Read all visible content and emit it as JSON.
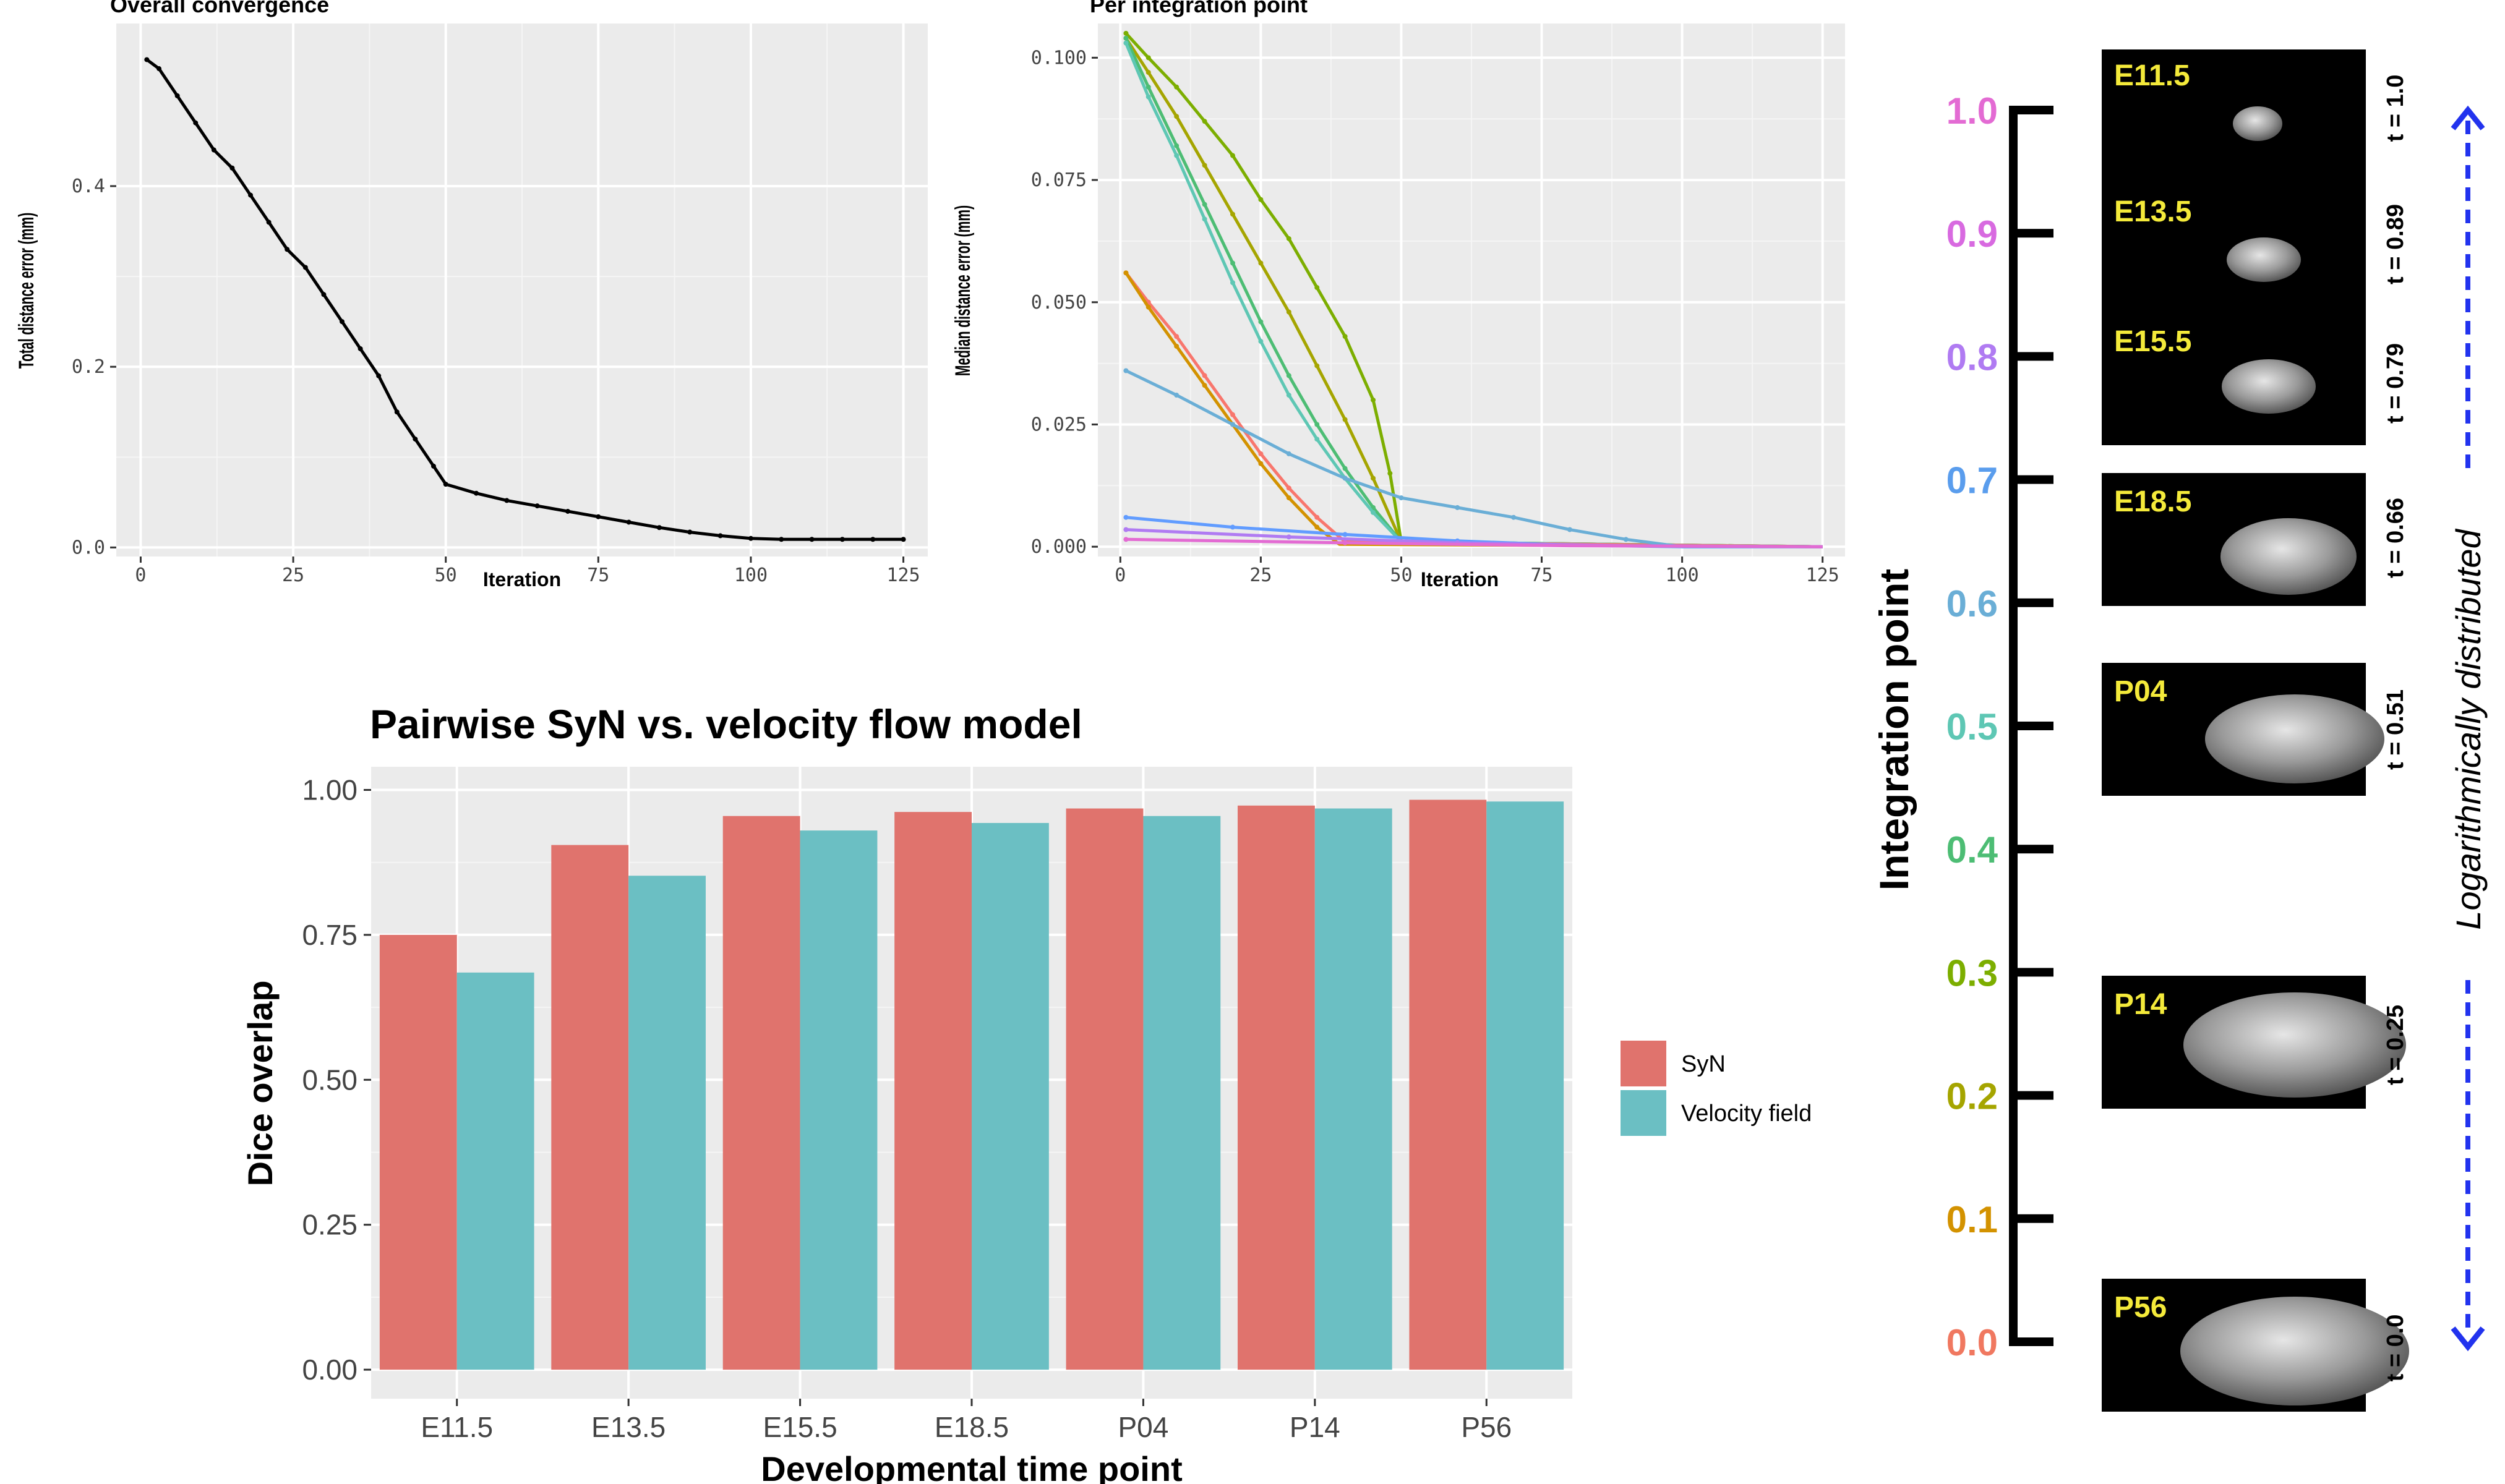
{
  "colors": {
    "panel_bg": "#ebebeb",
    "grid_major": "#ffffff",
    "syn": "#e0736d",
    "velocity": "#6bbfc3",
    "arrow": "#2233ee",
    "image_label": "#f4ea3a"
  },
  "chart_data": [
    {
      "type": "line",
      "title": "Overall convergence",
      "xlabel": "Iteration",
      "ylabel": "Total distance error (mm)",
      "xlim": [
        -4,
        129
      ],
      "ylim": [
        -0.01,
        0.58
      ],
      "x_ticks": [
        "0",
        "25",
        "50",
        "75",
        "100",
        "125"
      ],
      "y_ticks": [
        "0.0",
        "0.2",
        "0.4"
      ],
      "grid": true,
      "series": [
        {
          "color": "#000000",
          "points": [
            [
              1,
              0.54
            ],
            [
              3,
              0.53
            ],
            [
              6,
              0.5
            ],
            [
              9,
              0.47
            ],
            [
              12,
              0.44
            ],
            [
              15,
              0.42
            ],
            [
              18,
              0.39
            ],
            [
              21,
              0.36
            ],
            [
              24,
              0.33
            ],
            [
              27,
              0.31
            ],
            [
              30,
              0.28
            ],
            [
              33,
              0.25
            ],
            [
              36,
              0.22
            ],
            [
              39,
              0.19
            ],
            [
              42,
              0.15
            ],
            [
              45,
              0.12
            ],
            [
              48,
              0.09
            ],
            [
              50,
              0.07
            ],
            [
              55,
              0.06
            ],
            [
              60,
              0.052
            ],
            [
              65,
              0.046
            ],
            [
              70,
              0.04
            ],
            [
              75,
              0.034
            ],
            [
              80,
              0.028
            ],
            [
              85,
              0.022
            ],
            [
              90,
              0.017
            ],
            [
              95,
              0.013
            ],
            [
              100,
              0.01
            ],
            [
              105,
              0.009
            ],
            [
              110,
              0.009
            ],
            [
              115,
              0.009
            ],
            [
              120,
              0.009
            ],
            [
              125,
              0.009
            ]
          ]
        }
      ]
    },
    {
      "type": "line",
      "title": "Per integration point",
      "xlabel": "Iteration",
      "ylabel": "Median distance error (mm)",
      "xlim": [
        -4,
        129
      ],
      "ylim": [
        -0.002,
        0.107
      ],
      "x_ticks": [
        "0",
        "25",
        "50",
        "75",
        "100",
        "125"
      ],
      "y_ticks": [
        "0.000",
        "0.025",
        "0.050",
        "0.075",
        "0.100"
      ],
      "grid": true,
      "series": [
        {
          "color": "#7cae00",
          "points": [
            [
              1,
              0.105
            ],
            [
              5,
              0.1
            ],
            [
              10,
              0.094
            ],
            [
              15,
              0.087
            ],
            [
              20,
              0.08
            ],
            [
              25,
              0.071
            ],
            [
              30,
              0.063
            ],
            [
              35,
              0.053
            ],
            [
              40,
              0.043
            ],
            [
              45,
              0.03
            ],
            [
              48,
              0.015
            ],
            [
              50,
              0.001
            ],
            [
              125,
              0
            ]
          ]
        },
        {
          "color": "#a5a500",
          "points": [
            [
              1,
              0.104
            ],
            [
              5,
              0.097
            ],
            [
              10,
              0.088
            ],
            [
              15,
              0.078
            ],
            [
              20,
              0.068
            ],
            [
              25,
              0.058
            ],
            [
              30,
              0.048
            ],
            [
              35,
              0.037
            ],
            [
              40,
              0.026
            ],
            [
              45,
              0.014
            ],
            [
              50,
              0.001
            ],
            [
              125,
              0
            ]
          ]
        },
        {
          "color": "#4dbd74",
          "points": [
            [
              1,
              0.104
            ],
            [
              5,
              0.094
            ],
            [
              10,
              0.082
            ],
            [
              15,
              0.07
            ],
            [
              20,
              0.058
            ],
            [
              25,
              0.046
            ],
            [
              30,
              0.035
            ],
            [
              35,
              0.025
            ],
            [
              40,
              0.016
            ],
            [
              45,
              0.008
            ],
            [
              50,
              0.001
            ],
            [
              125,
              0
            ]
          ]
        },
        {
          "color": "#5ec7b4",
          "points": [
            [
              1,
              0.103
            ],
            [
              5,
              0.092
            ],
            [
              10,
              0.08
            ],
            [
              15,
              0.067
            ],
            [
              20,
              0.054
            ],
            [
              25,
              0.042
            ],
            [
              30,
              0.031
            ],
            [
              35,
              0.022
            ],
            [
              40,
              0.014
            ],
            [
              45,
              0.007
            ],
            [
              50,
              0.001
            ],
            [
              125,
              0
            ]
          ]
        },
        {
          "color": "#f8766d",
          "points": [
            [
              1,
              0.056
            ],
            [
              5,
              0.05
            ],
            [
              10,
              0.043
            ],
            [
              15,
              0.035
            ],
            [
              20,
              0.027
            ],
            [
              25,
              0.019
            ],
            [
              30,
              0.012
            ],
            [
              35,
              0.006
            ],
            [
              40,
              0.001
            ],
            [
              125,
              0
            ]
          ]
        },
        {
          "color": "#d39200",
          "points": [
            [
              1,
              0.056
            ],
            [
              5,
              0.049
            ],
            [
              10,
              0.041
            ],
            [
              15,
              0.033
            ],
            [
              20,
              0.025
            ],
            [
              25,
              0.017
            ],
            [
              30,
              0.01
            ],
            [
              35,
              0.004
            ],
            [
              39,
              0.0005
            ],
            [
              125,
              0
            ]
          ]
        },
        {
          "color": "#6aaed6",
          "points": [
            [
              1,
              0.036
            ],
            [
              10,
              0.031
            ],
            [
              20,
              0.025
            ],
            [
              30,
              0.019
            ],
            [
              40,
              0.014
            ],
            [
              50,
              0.01
            ],
            [
              60,
              0.008
            ],
            [
              70,
              0.006
            ],
            [
              80,
              0.0035
            ],
            [
              90,
              0.0015
            ],
            [
              100,
              0
            ],
            [
              125,
              0
            ]
          ]
        },
        {
          "color": "#619cff",
          "points": [
            [
              1,
              0.006
            ],
            [
              20,
              0.004
            ],
            [
              40,
              0.0025
            ],
            [
              60,
              0.0012
            ],
            [
              80,
              0.0003
            ],
            [
              100,
              0
            ],
            [
              125,
              0
            ]
          ]
        },
        {
          "color": "#b07bf2",
          "points": [
            [
              1,
              0.0035
            ],
            [
              30,
              0.002
            ],
            [
              60,
              0.0008
            ],
            [
              90,
              0.0002
            ],
            [
              125,
              0
            ]
          ]
        },
        {
          "color": "#e36bd3",
          "points": [
            [
              1,
              0.0015
            ],
            [
              40,
              0.0008
            ],
            [
              80,
              0.0002
            ],
            [
              125,
              0
            ]
          ]
        }
      ]
    },
    {
      "type": "bar",
      "title": "Pairwise SyN vs. velocity flow model",
      "xlabel": "Developmental time point",
      "ylabel": "Dice overlap",
      "categories": [
        "E11.5",
        "E13.5",
        "E15.5",
        "E18.5",
        "P04",
        "P14",
        "P56"
      ],
      "ylim": [
        -0.05,
        1.04
      ],
      "y_ticks": [
        "0.00",
        "0.25",
        "0.50",
        "0.75",
        "1.00"
      ],
      "grid": true,
      "legend_position": "right",
      "series": [
        {
          "name": "SyN",
          "color": "#e0736d",
          "values": [
            0.75,
            0.905,
            0.955,
            0.962,
            0.968,
            0.973,
            0.983
          ]
        },
        {
          "name": "Velocity field",
          "color": "#6bbfc3",
          "values": [
            0.685,
            0.852,
            0.93,
            0.943,
            0.955,
            0.968,
            0.98
          ]
        }
      ]
    }
  ],
  "integration_panel": {
    "axis_label": "Integration point",
    "ticks": [
      {
        "label": "1.0",
        "value": 1.0,
        "color": "#e36bd3"
      },
      {
        "label": "0.9",
        "value": 0.9,
        "color": "#d86ae0"
      },
      {
        "label": "0.8",
        "value": 0.8,
        "color": "#b07bf2"
      },
      {
        "label": "0.7",
        "value": 0.7,
        "color": "#5a9ded"
      },
      {
        "label": "0.6",
        "value": 0.6,
        "color": "#6aaed6"
      },
      {
        "label": "0.5",
        "value": 0.5,
        "color": "#5ec7b4"
      },
      {
        "label": "0.4",
        "value": 0.4,
        "color": "#4dbd74"
      },
      {
        "label": "0.3",
        "value": 0.3,
        "color": "#7cae00"
      },
      {
        "label": "0.2",
        "value": 0.2,
        "color": "#a5a500"
      },
      {
        "label": "0.1",
        "value": 0.1,
        "color": "#d39200"
      },
      {
        "label": "0.0",
        "value": 0.0,
        "color": "#f07860"
      }
    ],
    "images": [
      {
        "label": "E11.5",
        "t": "t = 1.0"
      },
      {
        "label": "E13.5",
        "t": "t = 0.89"
      },
      {
        "label": "E15.5",
        "t": "t = 0.79"
      },
      {
        "label": "E18.5",
        "t": "t = 0.66"
      },
      {
        "label": "P04",
        "t": "t = 0.51"
      },
      {
        "label": "P14",
        "t": "t = 0.25"
      },
      {
        "label": "P56",
        "t": "t = 0.0"
      }
    ],
    "arrow_label": "Logarithmically distributed"
  }
}
